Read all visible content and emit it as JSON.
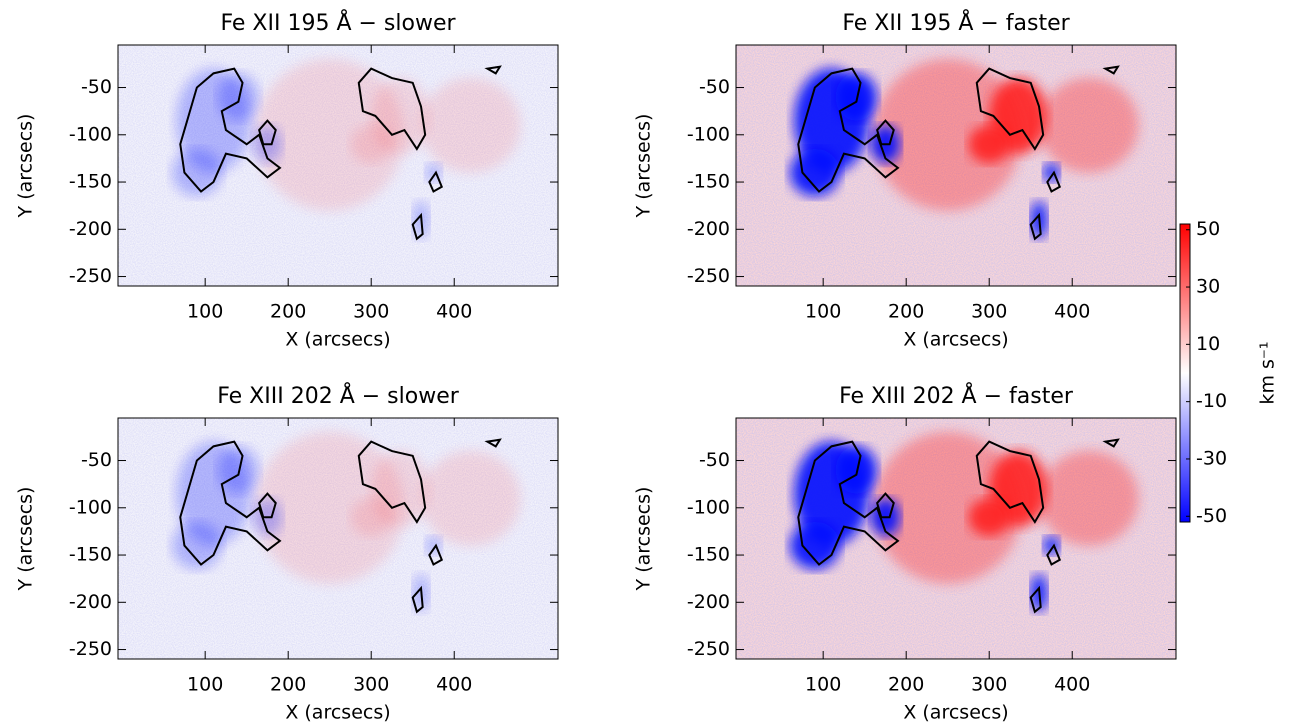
{
  "chart_data": [
    {
      "type": "heatmap",
      "title": "Fe XII 195 Å − slower",
      "xlabel": "X (arcsecs)",
      "ylabel": "Y (arcsecs)",
      "xlim": [
        -5,
        525
      ],
      "ylim": [
        -260,
        -5
      ],
      "xticks": [
        100,
        200,
        300,
        400
      ],
      "yticks": [
        -50,
        -100,
        -150,
        -200,
        -250
      ]
    },
    {
      "type": "heatmap",
      "title": "Fe XII 195 Å − faster",
      "xlabel": "X (arcsecs)",
      "ylabel": "Y (arcsecs)",
      "xlim": [
        -5,
        525
      ],
      "ylim": [
        -260,
        -5
      ],
      "xticks": [
        100,
        200,
        300,
        400
      ],
      "yticks": [
        -50,
        -100,
        -150,
        -200,
        -250
      ]
    },
    {
      "type": "heatmap",
      "title": "Fe XIII 202 Å − slower",
      "xlabel": "X (arcsecs)",
      "ylabel": "Y (arcsecs)",
      "xlim": [
        -5,
        525
      ],
      "ylim": [
        -260,
        -5
      ],
      "xticks": [
        100,
        200,
        300,
        400
      ],
      "yticks": [
        -50,
        -100,
        -150,
        -200,
        -250
      ]
    },
    {
      "type": "heatmap",
      "title": "Fe XIII 202 Å − faster",
      "xlabel": "X (arcsecs)",
      "ylabel": "Y (arcsecs)",
      "xlim": [
        -5,
        525
      ],
      "ylim": [
        -260,
        -5
      ],
      "xticks": [
        100,
        200,
        300,
        400
      ],
      "yticks": [
        -50,
        -100,
        -150,
        -200,
        -250
      ]
    },
    {
      "type": "colorbar",
      "label": "km s⁻¹",
      "clim": [
        -52,
        52
      ],
      "ticks": [
        50,
        30,
        10,
        -10,
        -30,
        -50
      ],
      "colors": [
        "#0000ff",
        "#ffffff",
        "#ff0000"
      ]
    }
  ]
}
